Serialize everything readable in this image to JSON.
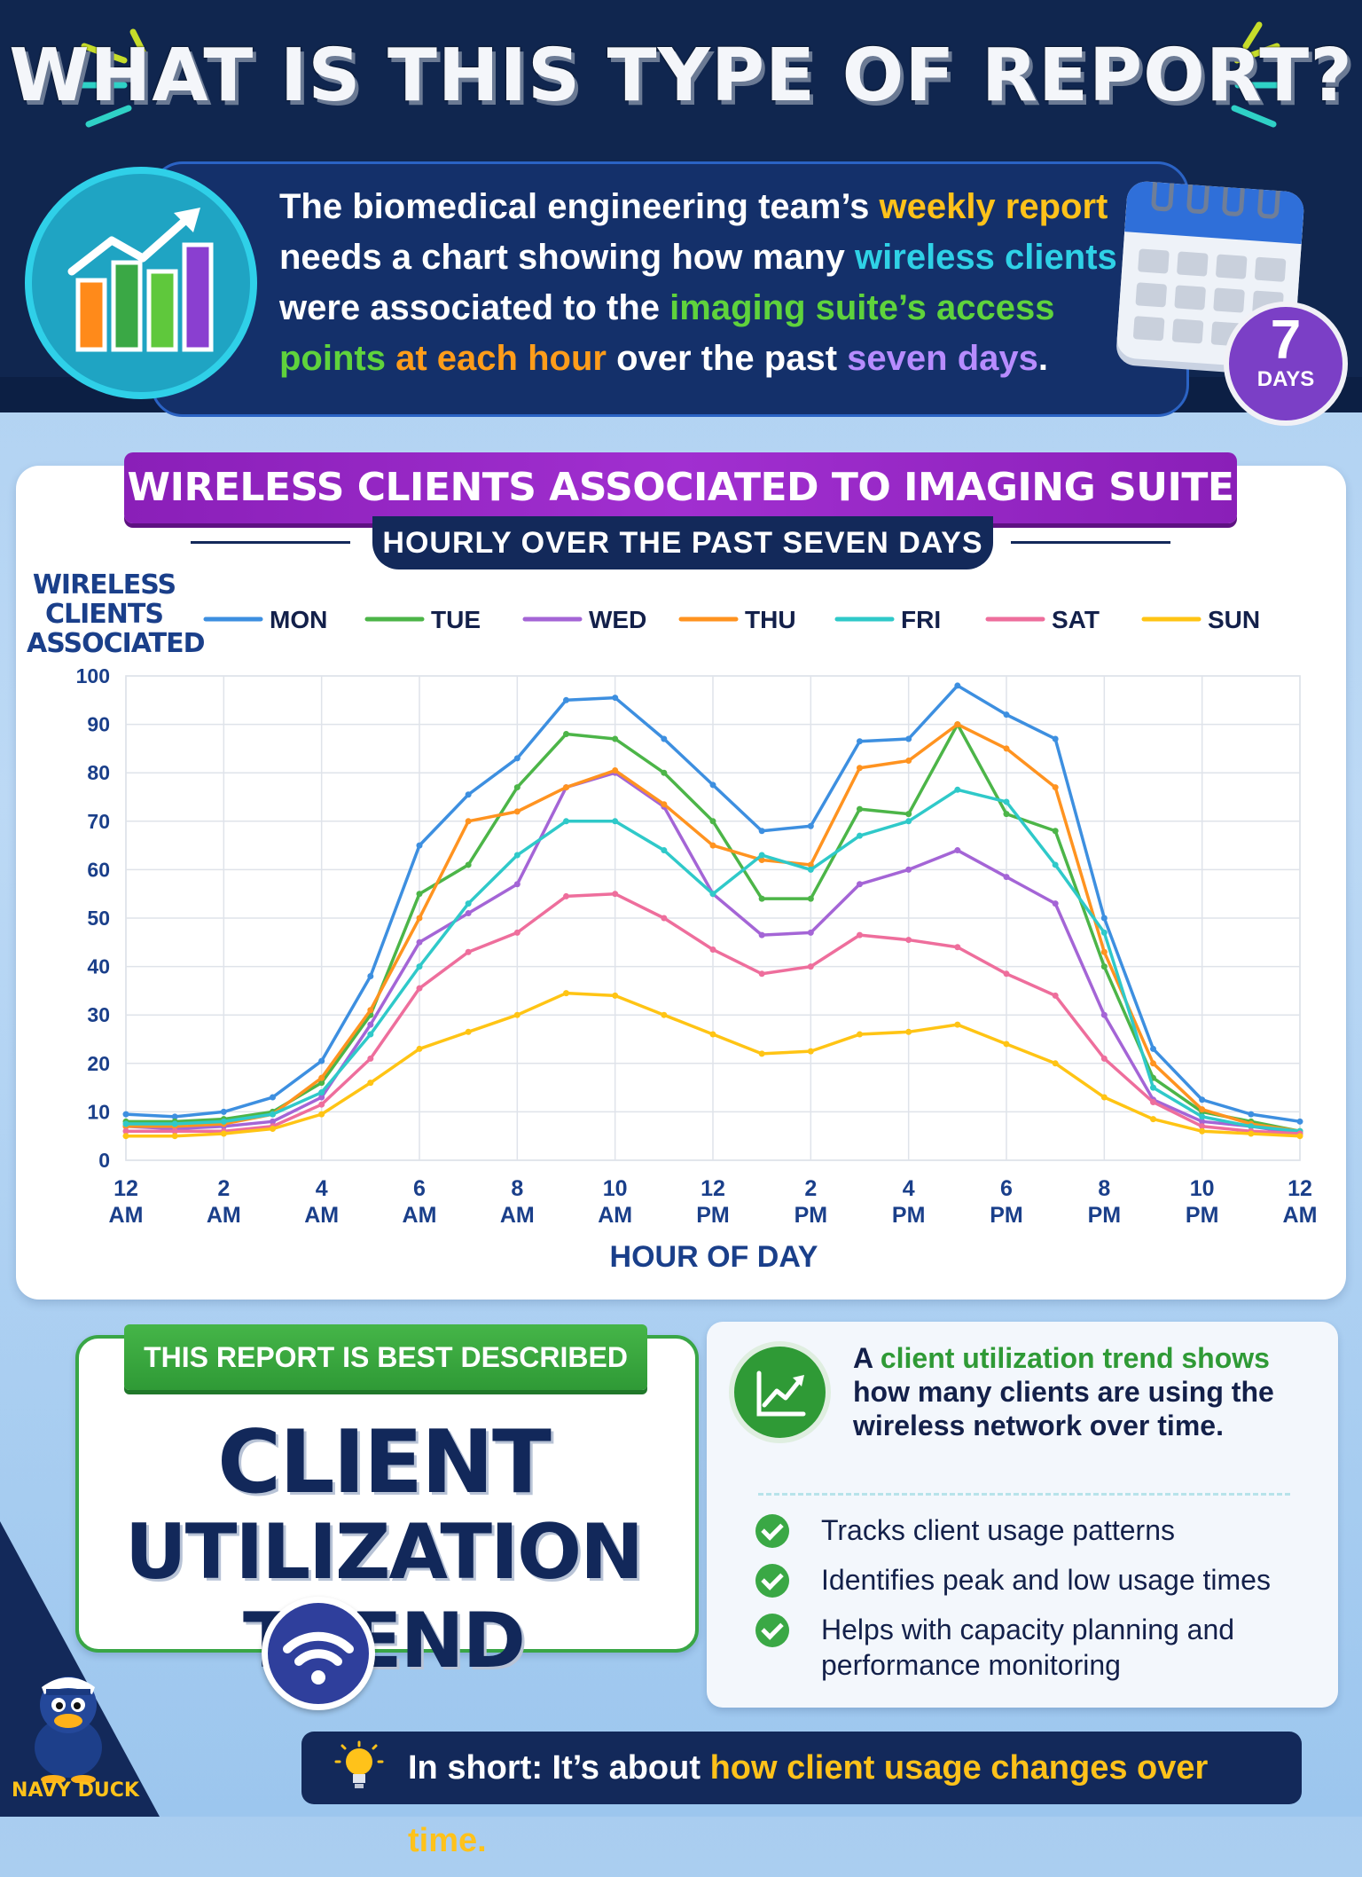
{
  "header": {
    "title": "WHAT IS THIS TYPE OF REPORT?",
    "intro": {
      "p1": "The biomedical engineering team’s ",
      "h1": "weekly report",
      "p2": " needs a chart showing how many ",
      "h2": "wireless clients",
      "p3": " were associated to the ",
      "h3": "imaging suite’s access points",
      "p4": " ",
      "h4": "at each hour",
      "p5": " over the past ",
      "h5": "seven days",
      "p6": "."
    },
    "badge_number": "7",
    "badge_label": "DAYS",
    "colors": {
      "yellow": "#ffc21a",
      "cyan": "#2fd1e6",
      "green": "#5fd33c",
      "orange": "#ff9d1a",
      "purple": "#b78cff"
    }
  },
  "chart_data": {
    "type": "line",
    "title": "WIRELESS CLIENTS ASSOCIATED TO IMAGING SUITE ACCESS POINTS",
    "subtitle": "HOURLY OVER THE PAST SEVEN DAYS",
    "ylabel": "WIRELESS CLIENTS ASSOCIATED",
    "xlabel": "HOUR OF DAY",
    "ylim": [
      0,
      100
    ],
    "yticks": [
      0,
      10,
      20,
      30,
      40,
      50,
      60,
      70,
      80,
      90,
      100
    ],
    "xlim": [
      0,
      24
    ],
    "xticks": [
      {
        "x": 0,
        "l1": "12",
        "l2": "AM"
      },
      {
        "x": 2,
        "l1": "2",
        "l2": "AM"
      },
      {
        "x": 4,
        "l1": "4",
        "l2": "AM"
      },
      {
        "x": 6,
        "l1": "6",
        "l2": "AM"
      },
      {
        "x": 8,
        "l1": "8",
        "l2": "AM"
      },
      {
        "x": 10,
        "l1": "10",
        "l2": "AM"
      },
      {
        "x": 12,
        "l1": "12",
        "l2": "PM"
      },
      {
        "x": 14,
        "l1": "2",
        "l2": "PM"
      },
      {
        "x": 16,
        "l1": "4",
        "l2": "PM"
      },
      {
        "x": 18,
        "l1": "6",
        "l2": "PM"
      },
      {
        "x": 20,
        "l1": "8",
        "l2": "PM"
      },
      {
        "x": 22,
        "l1": "10",
        "l2": "PM"
      },
      {
        "x": 24,
        "l1": "12",
        "l2": "AM"
      }
    ],
    "grid": true,
    "legend": "top",
    "x": [
      0,
      1,
      2,
      3,
      4,
      5,
      6,
      7,
      8,
      9,
      10,
      11,
      12,
      13,
      14,
      15,
      16,
      17,
      18,
      19,
      20,
      21,
      22,
      23,
      24
    ],
    "series": [
      {
        "name": "MON",
        "color": "#3d8fe0",
        "values": [
          9.5,
          9,
          10,
          13,
          20.5,
          38,
          65,
          75.5,
          83,
          95,
          95.5,
          87,
          77.5,
          68,
          69,
          86.5,
          87,
          98,
          92,
          87,
          50,
          23,
          12.5,
          9.5,
          8
        ]
      },
      {
        "name": "TUE",
        "color": "#4cb548",
        "values": [
          8,
          8,
          8.5,
          10,
          16,
          30,
          55,
          61,
          77,
          88,
          87,
          80,
          70,
          54,
          54,
          72.5,
          71.5,
          90,
          71.5,
          68,
          40,
          17,
          10,
          8,
          6
        ]
      },
      {
        "name": "WED",
        "color": "#a465d6",
        "values": [
          7,
          6.5,
          7,
          8,
          13,
          28,
          45,
          51,
          57,
          77,
          80,
          73,
          55,
          46.5,
          47,
          57,
          60,
          64,
          58.5,
          53,
          30,
          12.5,
          8,
          7,
          5.5
        ]
      },
      {
        "name": "THU",
        "color": "#ff9320",
        "values": [
          7,
          7,
          7.5,
          9.5,
          17,
          31,
          50,
          70,
          72,
          77,
          80.5,
          73.5,
          65,
          62,
          61,
          81,
          82.5,
          90,
          85,
          77,
          43,
          20,
          10.5,
          7.5,
          6
        ]
      },
      {
        "name": "FRI",
        "color": "#2fc9c9",
        "values": [
          7.5,
          7.5,
          8,
          9.5,
          14,
          26,
          40,
          53,
          63,
          70,
          70,
          64,
          55,
          63,
          60,
          67,
          70,
          76.5,
          74,
          61,
          47,
          15,
          9,
          7,
          6
        ]
      },
      {
        "name": "SAT",
        "color": "#ee6e9c",
        "values": [
          6,
          6,
          6,
          7,
          11.5,
          21,
          35.5,
          43,
          47,
          54.5,
          55,
          50,
          43.5,
          38.5,
          40,
          46.5,
          45.5,
          44,
          38.5,
          34,
          21,
          12,
          7,
          6,
          5.5
        ]
      },
      {
        "name": "SUN",
        "color": "#ffc414",
        "values": [
          5,
          5,
          5.5,
          6.5,
          9.5,
          16,
          23,
          26.5,
          30,
          34.5,
          34,
          30,
          26,
          22,
          22.5,
          26,
          26.5,
          28,
          24,
          20,
          13,
          8.5,
          6,
          5.5,
          5
        ]
      }
    ]
  },
  "answer": {
    "tag": "THIS REPORT IS BEST DESCRIBED AS A:",
    "line1": "CLIENT",
    "line2": "UTILIZATION TREND"
  },
  "definition": {
    "p1": "A ",
    "h1": "client utilization trend",
    "h2": "shows",
    "p2": " how many clients are using the wireless network over time.",
    "bullets": [
      "Tracks client usage patterns",
      "Identifies peak and low usage times",
      "Helps with capacity planning and performance monitoring"
    ]
  },
  "summary": {
    "prefix": "In short: It’s about ",
    "highlight": "how client usage changes over time."
  },
  "brand": "NAVY DUCK"
}
